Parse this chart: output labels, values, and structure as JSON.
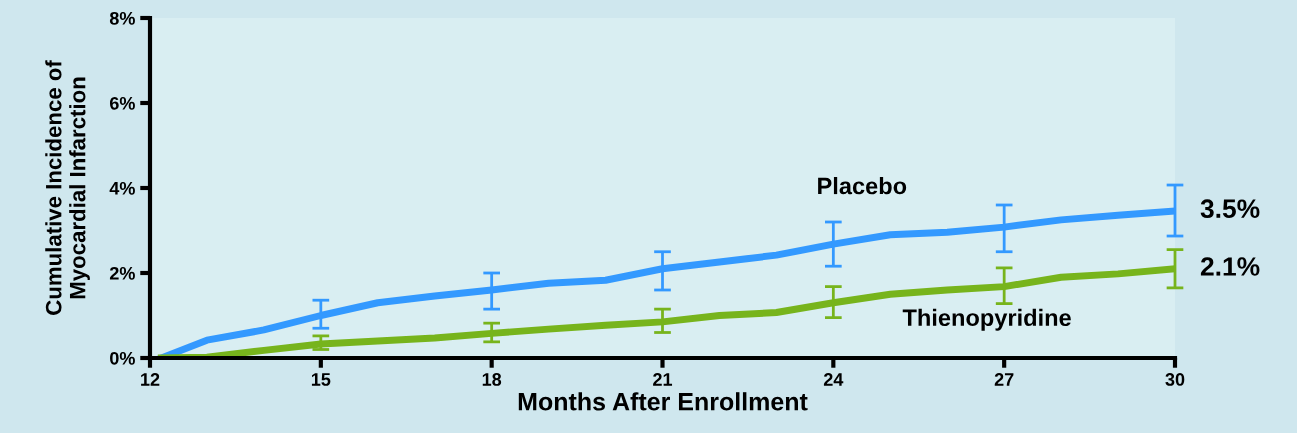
{
  "chart_data": {
    "type": "line",
    "xlabel": "Months After Enrollment",
    "ylabel": "Cumulative Incidence of\nMyocardial Infarction",
    "xlim": [
      12,
      30
    ],
    "xticks": [
      12,
      15,
      18,
      21,
      24,
      27,
      30
    ],
    "ylim": [
      0,
      8
    ],
    "yticks": [
      {
        "value": 0,
        "label": "0%"
      },
      {
        "value": 2,
        "label": "2%"
      },
      {
        "value": 4,
        "label": "4%"
      },
      {
        "value": 6,
        "label": "6%"
      },
      {
        "value": 8,
        "label": "8%"
      }
    ],
    "grid": false,
    "legend": false,
    "series": [
      {
        "name": "Placebo",
        "color": "#3399ff",
        "x": [
          12.2,
          13,
          14,
          15,
          16,
          17,
          18,
          19,
          20,
          21,
          22,
          23,
          24,
          25,
          26,
          27,
          28,
          29,
          30
        ],
        "values": [
          0,
          0.42,
          0.66,
          1.0,
          1.3,
          1.46,
          1.6,
          1.76,
          1.83,
          2.1,
          2.26,
          2.42,
          2.68,
          2.9,
          2.96,
          3.08,
          3.25,
          3.36,
          3.46
        ],
        "errors": [
          null,
          null,
          null,
          [
            0.7,
            1.36
          ],
          null,
          null,
          [
            1.15,
            2.0
          ],
          null,
          null,
          [
            1.6,
            2.5
          ],
          null,
          null,
          [
            2.16,
            3.2
          ],
          null,
          null,
          [
            2.5,
            3.6
          ],
          null,
          null,
          [
            2.87,
            4.07
          ]
        ]
      },
      {
        "name": "Thienopyridine",
        "color": "#77b41c",
        "x": [
          12.2,
          13,
          14,
          15,
          16,
          17,
          18,
          19,
          20,
          21,
          22,
          23,
          24,
          25,
          26,
          27,
          28,
          29,
          30
        ],
        "values": [
          0,
          0.02,
          0.18,
          0.33,
          0.4,
          0.47,
          0.58,
          0.68,
          0.77,
          0.85,
          1.0,
          1.07,
          1.3,
          1.5,
          1.6,
          1.68,
          1.9,
          1.98,
          2.1
        ],
        "errors": [
          null,
          null,
          null,
          [
            0.2,
            0.52
          ],
          null,
          null,
          [
            0.38,
            0.82
          ],
          null,
          null,
          [
            0.6,
            1.15
          ],
          null,
          null,
          [
            0.95,
            1.68
          ],
          null,
          null,
          [
            1.28,
            2.12
          ],
          null,
          null,
          [
            1.65,
            2.55
          ]
        ]
      }
    ],
    "annotations": [
      {
        "text": "3.5%",
        "x": 30,
        "y": 3.46
      },
      {
        "text": "2.1%",
        "x": 30,
        "y": 2.1
      }
    ]
  }
}
